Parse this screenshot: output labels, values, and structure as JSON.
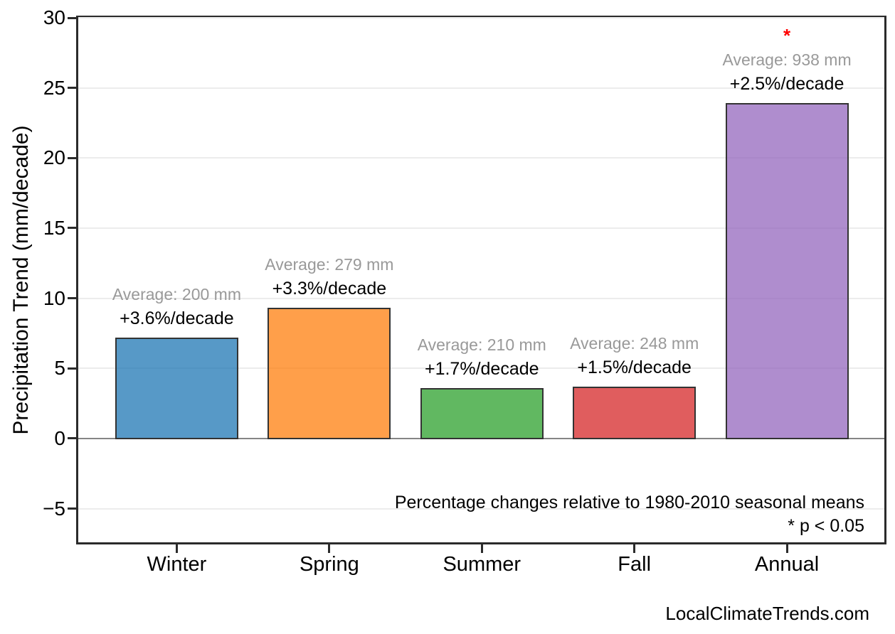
{
  "chart_data": {
    "type": "bar",
    "categories": [
      "Winter",
      "Spring",
      "Summer",
      "Fall",
      "Annual"
    ],
    "values": [
      7.2,
      9.3,
      3.6,
      3.7,
      23.9
    ],
    "bar_labels": [
      {
        "average": "Average: 200 mm",
        "change": "+3.6%/decade",
        "significant": false
      },
      {
        "average": "Average: 279 mm",
        "change": "+3.3%/decade",
        "significant": false
      },
      {
        "average": "Average: 210 mm",
        "change": "+1.7%/decade",
        "significant": false
      },
      {
        "average": "Average: 248 mm",
        "change": "+1.5%/decade",
        "significant": false
      },
      {
        "average": "Average: 938 mm",
        "change": "+2.5%/decade",
        "significant": true
      }
    ],
    "significance_marker": "*",
    "significance_color": "#ff0000",
    "title": "",
    "xlabel": "",
    "ylabel": "Precipitation Trend (mm/decade)",
    "ytick_values": [
      -5,
      0,
      5,
      10,
      15,
      20,
      25,
      30
    ],
    "ytick_labels": [
      "−5",
      "0",
      "5",
      "10",
      "15",
      "20",
      "25",
      "30"
    ],
    "ylim": [
      -7.4,
      30
    ],
    "grid": true,
    "legend": "none",
    "bar_base_colors": [
      "#1f77b4",
      "#ff7f0e",
      "#2ca02c",
      "#d62728",
      "#9467bd"
    ],
    "bar_fill_alpha": 0.75,
    "bar_edge_color": "#333333",
    "gridline_color": "#ececec",
    "zero_line_color": "#858585",
    "average_label_color": "#999999",
    "annotation_line1": "Percentage changes relative to 1980-2010 seasonal means",
    "annotation_line2": "* p < 0.05"
  },
  "footer": {
    "watermark": "LocalClimateTrends.com"
  }
}
